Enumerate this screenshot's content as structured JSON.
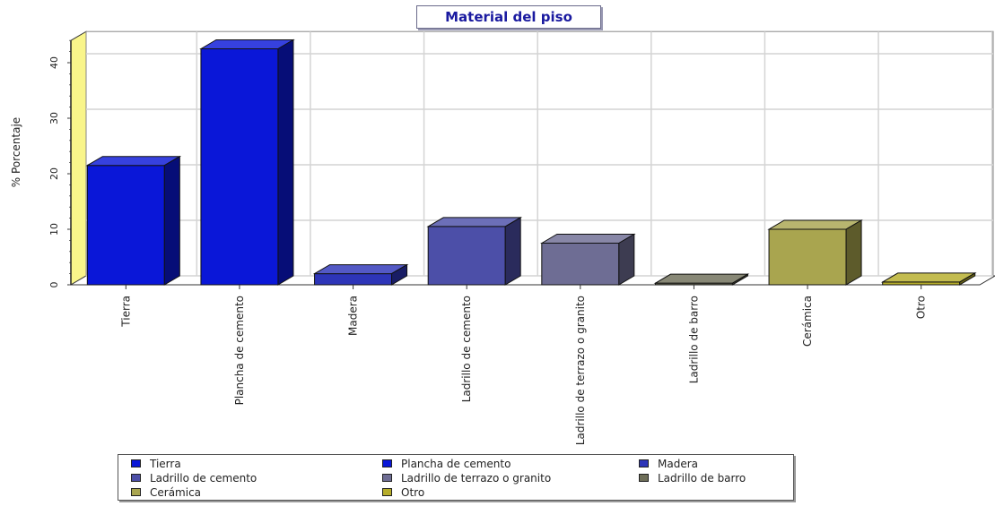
{
  "chart_data": {
    "type": "bar",
    "title": "Material del piso",
    "ylabel": "% Porcentaje",
    "xlabel": "",
    "ylim": [
      0,
      44
    ],
    "yticks": [
      0,
      10,
      20,
      30,
      40
    ],
    "grid": true,
    "style": "3d",
    "legend_position": "bottom",
    "categories": [
      "Tierra",
      "Plancha de cemento",
      "Madera",
      "Ladrillo de cemento",
      "Ladrillo de terrazo o granito",
      "Ladrillo de barro",
      "Cerámica",
      "Otro"
    ],
    "values": [
      21.5,
      42.5,
      2,
      10.5,
      7.5,
      0.3,
      10,
      0.5
    ],
    "colors": [
      "#0a17d8",
      "#0a17d8",
      "#2d35b8",
      "#4c4fa8",
      "#6e6d94",
      "#6e6e58",
      "#a9a54f",
      "#b6ad2a"
    ]
  }
}
